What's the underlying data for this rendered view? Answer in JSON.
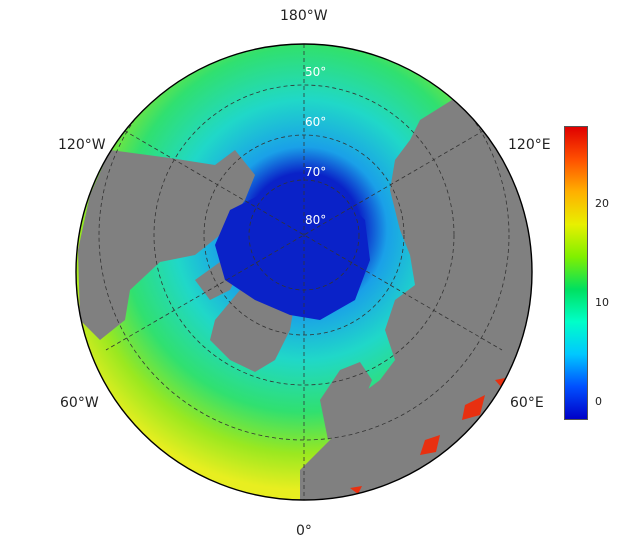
{
  "map": {
    "projection": "north-polar-stereographic",
    "land_color": "#808080",
    "ocean_colors": {
      "ice": "#0a22c8",
      "near_ice": "#2a60e0",
      "cold": "#10b8e8",
      "cool": "#20d8c8",
      "mid": "#30e070",
      "warm": "#9ae820",
      "hot": "#e8ee20",
      "red": "#e83010"
    },
    "longitude_labels": {
      "top": "180°W",
      "bottom": "0°",
      "upper_left": "120°W",
      "upper_right": "120°E",
      "lower_left": "60°W",
      "lower_right": "60°E"
    },
    "latitude_labels": [
      "50°",
      "60°",
      "70°",
      "80°"
    ]
  },
  "colorbar": {
    "min": -2,
    "max": 28,
    "ticks": [
      "0",
      "10",
      "20"
    ],
    "colors": [
      "#0000c8",
      "#0050ff",
      "#00c8ff",
      "#00ffc8",
      "#00e060",
      "#80f000",
      "#e8f000",
      "#ffb000",
      "#ff5000",
      "#e00000"
    ]
  }
}
